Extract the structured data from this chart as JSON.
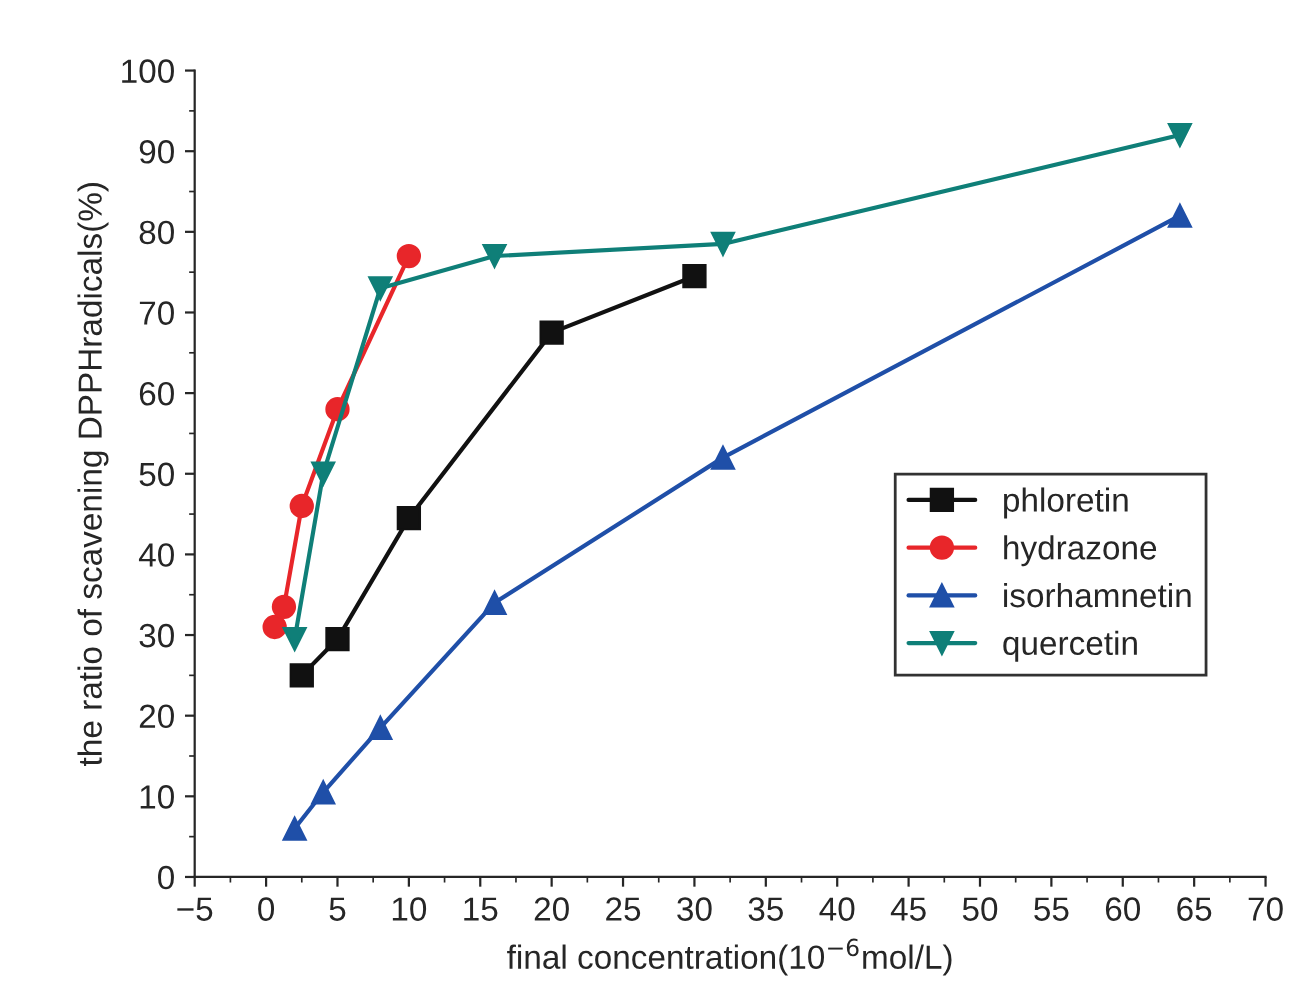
{
  "chart_data": {
    "type": "line",
    "xlabel": "final concentration(10$^{−6}$mol/L)",
    "ylabel": "the ratio of scavening DPPHradicals(%)",
    "xlim": [
      -5,
      70
    ],
    "xticks": [
      -5,
      0,
      5,
      10,
      15,
      20,
      25,
      30,
      35,
      40,
      45,
      50,
      55,
      60,
      65,
      70
    ],
    "ylim": [
      0,
      100
    ],
    "yticks": [
      0,
      10,
      20,
      30,
      40,
      50,
      60,
      70,
      80,
      90,
      100
    ],
    "grid": false,
    "legend": "right",
    "line_style": "solid",
    "series": [
      {
        "name": "phloretin",
        "color": "#111111",
        "marker": "square",
        "x": [
          2.5,
          5,
          10,
          20,
          30
        ],
        "values": [
          25,
          29.5,
          44.5,
          67.5,
          74.5
        ]
      },
      {
        "name": "hydrazone",
        "color": "#e8262a",
        "marker": "circle",
        "x": [
          0.6,
          1.25,
          2.5,
          5,
          10
        ],
        "values": [
          31,
          33.5,
          46,
          58,
          77
        ]
      },
      {
        "name": "isorhamnetin",
        "color": "#1f4fa8",
        "marker": "triangle",
        "x": [
          2,
          4,
          8,
          16,
          32,
          64
        ],
        "values": [
          6,
          10.5,
          18.5,
          34,
          52,
          82
        ]
      },
      {
        "name": "quercetin",
        "color": "#0f7f78",
        "marker": "triangle_down",
        "x": [
          2,
          4,
          8,
          16,
          32,
          64
        ],
        "values": [
          29.5,
          50,
          73,
          77,
          78.5,
          92
        ]
      }
    ]
  }
}
